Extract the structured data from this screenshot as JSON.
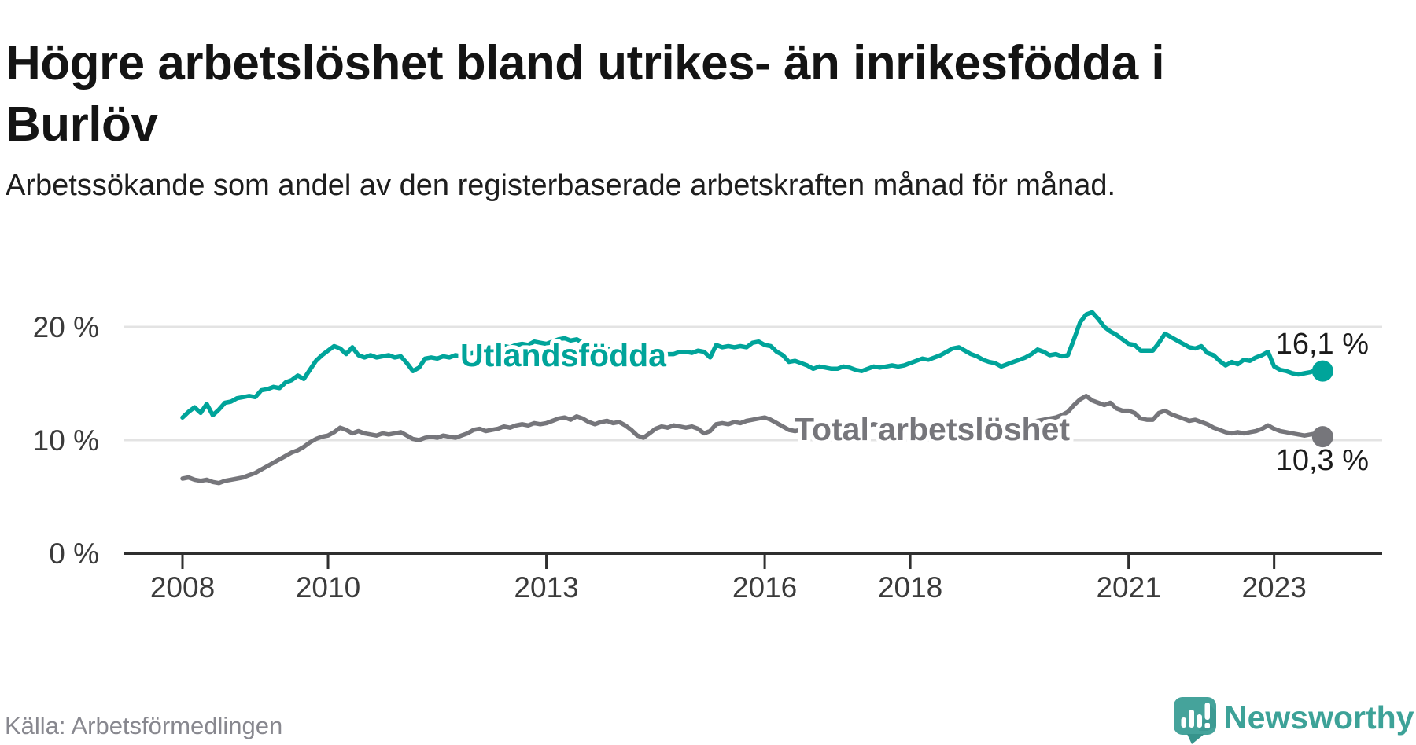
{
  "header": {
    "title": "Högre arbetslöshet bland utrikes- än inrikesfödda i Burlöv",
    "subtitle": "Arbetssökande som andel av den registerbaserade arbetskraften månad för månad."
  },
  "source": {
    "label": "Källa: Arbetsförmedlingen"
  },
  "branding": {
    "logo_text": "Newsworthy",
    "logo_icon": "newsworthy-speech-bubble-bar-chart-icon",
    "logo_color": "#3da298"
  },
  "colors": {
    "background": "#ffffff",
    "title_text": "#141414",
    "subtitle_text": "#1e1e1e",
    "axis_line": "#2f2f2f",
    "axis_text": "#3b3b3b",
    "gridline": "#e3e3e3",
    "end_label_text": "#1b1b1b",
    "source_text": "#88888f",
    "series_foreign_born": "#00a49a",
    "series_total": "#76767b"
  },
  "chart_data": {
    "type": "line",
    "title": "Högre arbetslöshet bland utrikes- än inrikesfödda i Burlöv",
    "subtitle": "Arbetssökande som andel av den registerbaserade arbetskraften månad för månad.",
    "x_unit": "month",
    "x_start": "2008-01",
    "x_end": "2023-09",
    "x_tick_years": [
      2008,
      2010,
      2013,
      2016,
      2018,
      2021,
      2023
    ],
    "x_tick_labels": [
      "2008",
      "2010",
      "2013",
      "2016",
      "2018",
      "2021",
      "2023"
    ],
    "y_ticks": [
      20,
      10,
      0
    ],
    "y_tick_labels": [
      "20 %",
      "10 %",
      "0 %"
    ],
    "ylim": [
      0,
      22.4
    ],
    "grid": "horizontal",
    "legend_position": "inline-labels",
    "series": [
      {
        "name": "Utlandsfödda",
        "color": "#00a49a",
        "end_value": 16.1,
        "end_label": "16,1 %",
        "values": [
          12.0,
          12.5,
          12.9,
          12.4,
          13.2,
          12.2,
          12.7,
          13.3,
          13.4,
          13.7,
          13.8,
          13.9,
          13.8,
          14.4,
          14.5,
          14.7,
          14.6,
          15.1,
          15.3,
          15.7,
          15.4,
          16.2,
          17.0,
          17.5,
          17.9,
          18.3,
          18.1,
          17.6,
          18.2,
          17.5,
          17.3,
          17.5,
          17.3,
          17.4,
          17.5,
          17.3,
          17.4,
          16.8,
          16.1,
          16.4,
          17.2,
          17.3,
          17.2,
          17.4,
          17.3,
          17.5,
          17.4,
          17.6,
          17.7,
          17.9,
          18.0,
          18.2,
          18.0,
          18.3,
          18.2,
          18.4,
          18.5,
          18.4,
          18.7,
          18.6,
          18.5,
          18.7,
          18.9,
          19.0,
          18.8,
          18.9,
          18.6,
          18.4,
          18.2,
          18.3,
          18.1,
          18.0,
          17.9,
          18.0,
          17.8,
          17.7,
          17.8,
          17.6,
          17.7,
          17.5,
          17.6,
          17.6,
          17.8,
          17.8,
          17.7,
          17.9,
          17.8,
          17.3,
          18.4,
          18.2,
          18.3,
          18.2,
          18.3,
          18.2,
          18.6,
          18.7,
          18.4,
          18.3,
          17.8,
          17.5,
          16.9,
          17.0,
          16.8,
          16.6,
          16.3,
          16.5,
          16.4,
          16.3,
          16.3,
          16.5,
          16.4,
          16.2,
          16.1,
          16.3,
          16.5,
          16.4,
          16.5,
          16.6,
          16.5,
          16.6,
          16.8,
          17.0,
          17.2,
          17.1,
          17.3,
          17.5,
          17.8,
          18.1,
          18.2,
          17.9,
          17.6,
          17.4,
          17.1,
          16.9,
          16.8,
          16.5,
          16.7,
          16.9,
          17.1,
          17.3,
          17.6,
          18.0,
          17.8,
          17.5,
          17.6,
          17.4,
          17.5,
          18.9,
          20.4,
          21.1,
          21.3,
          20.7,
          20.0,
          19.6,
          19.3,
          18.9,
          18.5,
          18.4,
          17.9,
          17.9,
          17.9,
          18.6,
          19.4,
          19.1,
          18.8,
          18.5,
          18.2,
          18.1,
          18.3,
          17.7,
          17.5,
          17.0,
          16.6,
          16.9,
          16.7,
          17.1,
          17.0,
          17.3,
          17.5,
          17.8,
          16.5,
          16.2,
          16.1,
          15.9,
          15.8,
          15.9,
          16.0,
          16.2,
          16.1
        ]
      },
      {
        "name": "Total arbetslöshet",
        "color": "#76767b",
        "end_value": 10.3,
        "end_label": "10,3 %",
        "values": [
          6.6,
          6.7,
          6.5,
          6.4,
          6.5,
          6.3,
          6.2,
          6.4,
          6.5,
          6.6,
          6.7,
          6.9,
          7.1,
          7.4,
          7.7,
          8.0,
          8.3,
          8.6,
          8.9,
          9.1,
          9.4,
          9.8,
          10.1,
          10.3,
          10.4,
          10.7,
          11.1,
          10.9,
          10.6,
          10.8,
          10.6,
          10.5,
          10.4,
          10.6,
          10.5,
          10.6,
          10.7,
          10.4,
          10.1,
          10.0,
          10.2,
          10.3,
          10.2,
          10.4,
          10.3,
          10.2,
          10.4,
          10.6,
          10.9,
          11.0,
          10.8,
          10.9,
          11.0,
          11.2,
          11.1,
          11.3,
          11.4,
          11.3,
          11.5,
          11.4,
          11.5,
          11.7,
          11.9,
          12.0,
          11.8,
          12.1,
          11.9,
          11.6,
          11.4,
          11.6,
          11.7,
          11.5,
          11.6,
          11.3,
          10.9,
          10.4,
          10.2,
          10.6,
          11.0,
          11.2,
          11.1,
          11.3,
          11.2,
          11.1,
          11.2,
          11.0,
          10.6,
          10.8,
          11.4,
          11.5,
          11.4,
          11.6,
          11.5,
          11.7,
          11.8,
          11.9,
          12.0,
          11.8,
          11.5,
          11.2,
          10.9,
          10.8,
          10.9,
          11.0,
          11.1,
          11.0,
          11.2,
          11.1,
          11.2,
          11.3,
          11.2,
          11.1,
          11.2,
          11.3,
          11.4,
          11.3,
          11.4,
          11.5,
          11.4,
          11.5,
          11.4,
          11.5,
          11.4,
          11.3,
          11.4,
          11.5,
          11.6,
          11.7,
          11.6,
          11.5,
          11.4,
          11.3,
          11.4,
          11.3,
          11.2,
          11.1,
          11.2,
          11.3,
          11.4,
          11.5,
          11.6,
          11.7,
          11.8,
          11.9,
          12.0,
          12.2,
          12.5,
          13.1,
          13.6,
          13.9,
          13.5,
          13.3,
          13.1,
          13.3,
          12.8,
          12.6,
          12.6,
          12.4,
          11.9,
          11.8,
          11.8,
          12.4,
          12.6,
          12.3,
          12.1,
          11.9,
          11.7,
          11.8,
          11.6,
          11.4,
          11.1,
          10.9,
          10.7,
          10.6,
          10.7,
          10.6,
          10.7,
          10.8,
          11.0,
          11.3,
          11.0,
          10.8,
          10.7,
          10.6,
          10.5,
          10.4,
          10.5,
          10.6,
          10.3
        ]
      }
    ]
  }
}
